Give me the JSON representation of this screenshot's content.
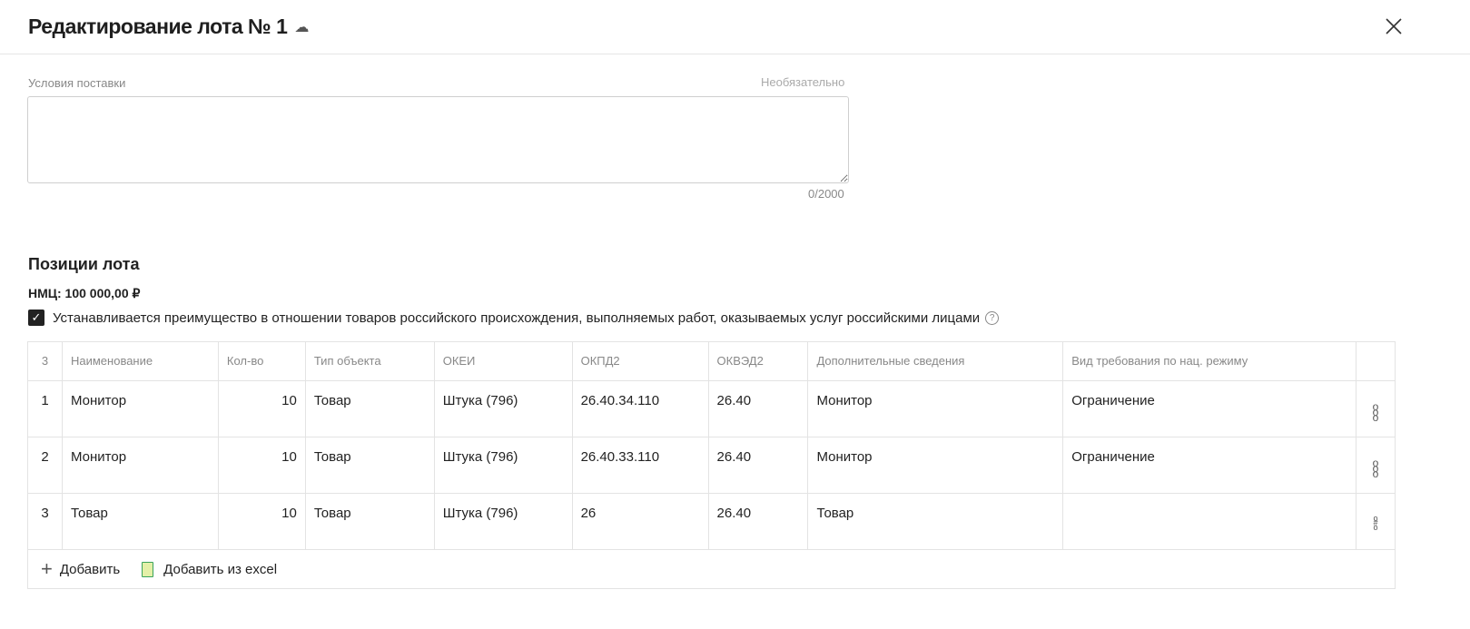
{
  "header": {
    "title": "Редактирование лота № 1",
    "cloud_icon": "cloud-check-icon",
    "close_icon": "close-icon"
  },
  "delivery": {
    "label": "Условия поставки",
    "optional": "Необязательно",
    "value": "",
    "counter": "0/2000"
  },
  "positions": {
    "title": "Позиции лота",
    "nmc": "НМЦ: 100 000,00 ₽",
    "advantage_checked": true,
    "advantage_label": "Устанавливается преимущество в отношении товаров российского происхождения, выполняемых работ, оказываемых услуг российскими лицами",
    "columns": [
      "3",
      "Наименование",
      "Кол-во",
      "Тип объекта",
      "ОКЕИ",
      "ОКПД2",
      "ОКВЭД2",
      "Дополнительные сведения",
      "Вид требования по нац. режиму"
    ],
    "rows": [
      [
        "1",
        "Монитор",
        "10",
        "Товар",
        "Штука (796)",
        "26.40.34.110",
        "26.40",
        "Монитор",
        "Ограничение"
      ],
      [
        "2",
        "Монитор",
        "10",
        "Товар",
        "Штука (796)",
        "26.40.33.110",
        "26.40",
        "Монитор",
        "Ограничение"
      ],
      [
        "3",
        "Товар",
        "10",
        "Товар",
        "Штука (796)",
        "26",
        "26.40",
        "Товар",
        ""
      ]
    ],
    "add_label": "Добавить",
    "add_excel_label": "Добавить из excel"
  }
}
